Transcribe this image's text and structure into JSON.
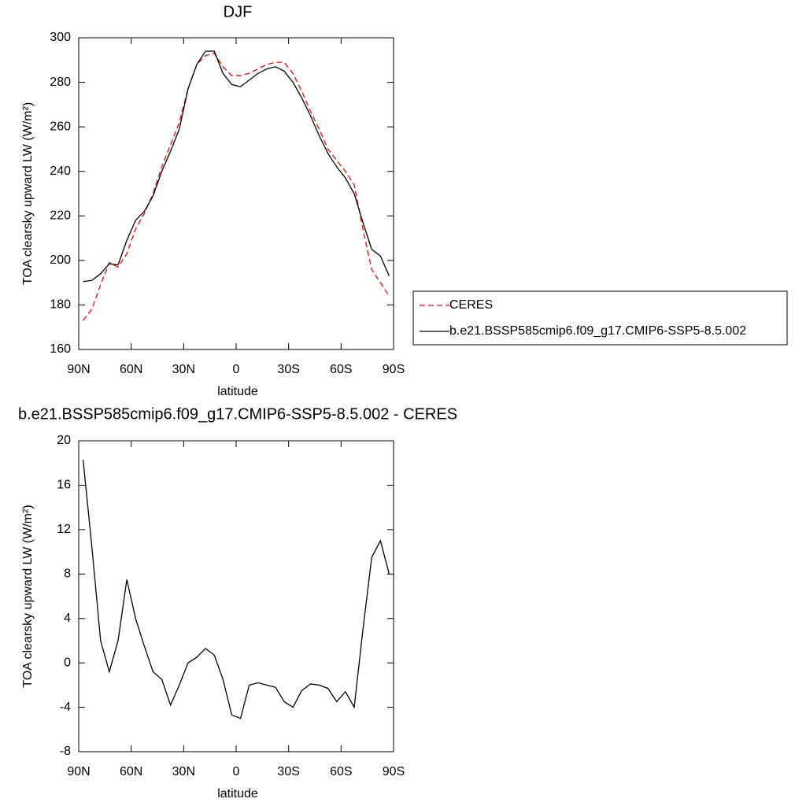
{
  "chart_data": [
    {
      "type": "line",
      "title": "DJF",
      "xlabel": "latitude",
      "ylabel": "TOA clearsky upward LW (W/m²)",
      "x": [
        87.5,
        82.5,
        77.5,
        72.5,
        67.5,
        62.5,
        57.5,
        52.5,
        47.5,
        42.5,
        37.5,
        32.5,
        27.5,
        22.5,
        17.5,
        12.5,
        7.5,
        2.5,
        -2.5,
        -7.5,
        -12.5,
        -17.5,
        -22.5,
        -27.5,
        -32.5,
        -37.5,
        -42.5,
        -47.5,
        -52.5,
        -57.5,
        -62.5,
        -67.5,
        -72.5,
        -77.5,
        -82.5,
        -87.5
      ],
      "series": [
        {
          "name": "CERES",
          "color": "#ff0000",
          "dashed": true,
          "values": [
            173,
            178,
            189,
            199,
            197,
            203,
            214,
            221,
            230,
            242,
            252,
            262,
            277,
            288,
            292,
            293,
            287,
            283,
            283,
            284,
            286,
            288,
            289,
            289,
            284,
            276,
            267,
            259,
            250,
            245,
            240,
            234,
            214,
            196,
            190,
            184
          ]
        },
        {
          "name": "b.e21.BSSP585cmip6.f09_g17.CMIP6-SSP5-8.5.002",
          "color": "#000000",
          "dashed": false,
          "values": [
            190.5,
            191,
            194,
            198.5,
            198,
            209,
            218,
            222,
            229,
            240,
            249,
            259,
            277,
            288,
            294,
            294,
            284,
            279,
            278,
            281,
            284,
            286,
            287,
            285,
            280,
            273,
            265,
            256,
            248,
            242,
            237,
            230,
            217,
            205,
            202,
            193
          ]
        }
      ],
      "xlim": [
        90,
        -90
      ],
      "xticks": [
        {
          "value": 90,
          "label": "90N"
        },
        {
          "value": 60,
          "label": "60N"
        },
        {
          "value": 30,
          "label": "30N"
        },
        0,
        {
          "value": -30,
          "label": "30S"
        },
        {
          "value": -60,
          "label": "60S"
        },
        {
          "value": -90,
          "label": "90S"
        }
      ],
      "ylim": [
        160,
        300
      ],
      "yticks": [
        160,
        180,
        200,
        220,
        240,
        260,
        280,
        300
      ],
      "legend": "right"
    },
    {
      "type": "line",
      "title": "b.e21.BSSP585cmip6.f09_g17.CMIP6-SSP5-8.5.002 - CERES",
      "xlabel": "latitude",
      "ylabel": "TOA clearsky upward LW (W/m²)",
      "x": [
        87.5,
        82.5,
        77.5,
        72.5,
        67.5,
        62.5,
        57.5,
        52.5,
        47.5,
        42.5,
        37.5,
        32.5,
        27.5,
        22.5,
        17.5,
        12.5,
        7.5,
        2.5,
        -2.5,
        -7.5,
        -12.5,
        -17.5,
        -22.5,
        -27.5,
        -32.5,
        -37.5,
        -42.5,
        -47.5,
        -52.5,
        -57.5,
        -62.5,
        -67.5,
        -72.5,
        -77.5,
        -82.5,
        -87.5
      ],
      "values": [
        18.3,
        10.5,
        2,
        -0.8,
        2,
        7.5,
        4,
        1.5,
        -0.8,
        -1.5,
        -3.8,
        -2,
        0,
        0.5,
        1.3,
        0.7,
        -1.5,
        -4.7,
        -5,
        -2,
        -1.8,
        -2,
        -2.2,
        -3.5,
        -4,
        -2.5,
        -1.9,
        -2,
        -2.3,
        -3.5,
        -2.6,
        -4,
        3,
        9.5,
        11,
        8
      ],
      "color": "#000000",
      "xlim": [
        90,
        -90
      ],
      "xticks": [
        {
          "value": 90,
          "label": "90N"
        },
        {
          "value": 60,
          "label": "60N"
        },
        {
          "value": 30,
          "label": "30N"
        },
        0,
        {
          "value": -30,
          "label": "30S"
        },
        {
          "value": -60,
          "label": "60S"
        },
        {
          "value": -90,
          "label": "90S"
        }
      ],
      "ylim": [
        -8,
        20
      ],
      "yticks": [
        -8,
        -4,
        0,
        4,
        8,
        12,
        16,
        20
      ]
    }
  ]
}
